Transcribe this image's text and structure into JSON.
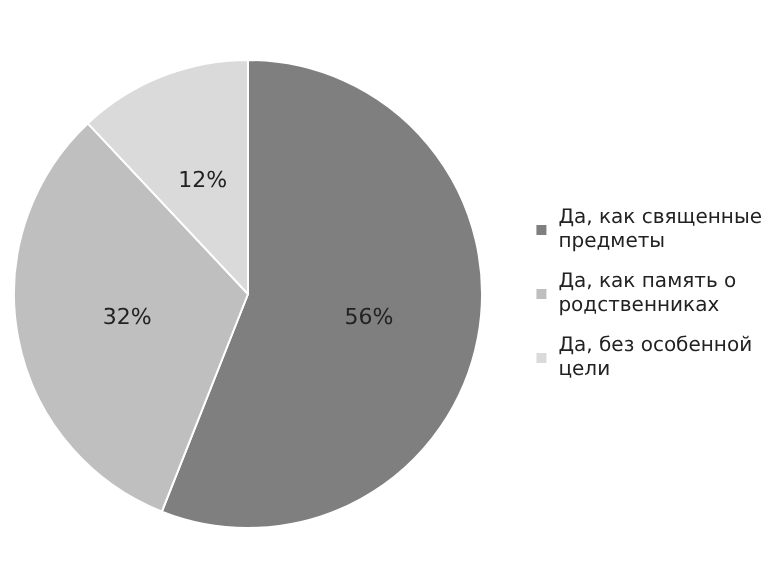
{
  "chart_data": {
    "type": "pie",
    "categories": [
      "Да, как священные предметы",
      "Да, как память о родственниках",
      "Да, без особенной цели"
    ],
    "values": [
      56,
      32,
      12
    ],
    "value_labels": [
      "56%",
      "32%",
      "12%"
    ],
    "colors": [
      "#7f7f7f",
      "#bfbfbf",
      "#dadada"
    ],
    "legend": "right"
  }
}
